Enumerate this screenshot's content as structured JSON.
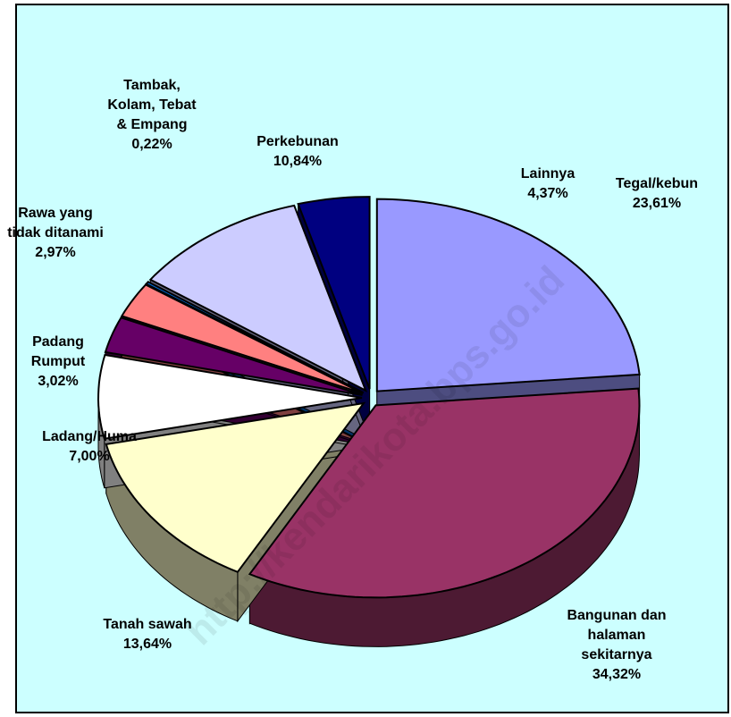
{
  "chart_data": {
    "type": "pie",
    "categories": [
      "Tegal/kebun",
      "Bangunan dan\nhalaman\nsekitarnya",
      "Tanah sawah",
      "Ladang/Huma",
      "Padang\nRumput",
      "Rawa yang\ntidak ditanami",
      "Tambak,\nKolam, Tebat\n& Empang",
      "Perkebunan",
      "Lainnya"
    ],
    "values": [
      23.61,
      34.32,
      13.64,
      7.0,
      3.02,
      2.97,
      0.22,
      10.84,
      4.37
    ],
    "value_labels": [
      "23,61%",
      "34,32%",
      "13,64%",
      "7,00%",
      "3,02%",
      "2,97%",
      "0,22%",
      "10,84%",
      "4,37%"
    ],
    "colors": [
      "#9999ff",
      "#993366",
      "#ffffcc",
      "#ffffff",
      "#660066",
      "#ff8080",
      "#0066cc",
      "#ccccff",
      "#000080"
    ],
    "watermark": "http://kendarikota.bps.go.id"
  }
}
